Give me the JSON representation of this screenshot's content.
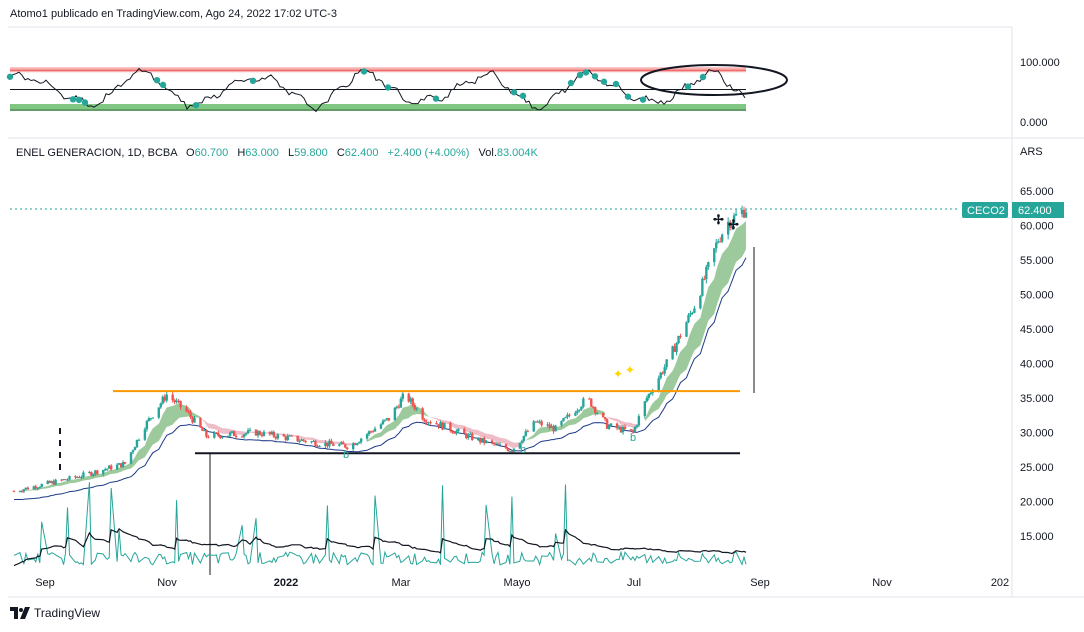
{
  "header": {
    "publisher_line": "Atomo1 publicado en TradingView.com, Ago 24, 2022 17:02 UTC-3"
  },
  "footer": {
    "brand": "TradingView",
    "logo": "tradingview-logo"
  },
  "colors": {
    "up": "#26a69a",
    "down": "#ef5350",
    "orange": "#ff9800",
    "ma": "#1e3a8a",
    "ribbon_up": "#7cb87c",
    "ribbon_down": "#e8a7b5",
    "volume": "#26a69a",
    "band_top": "#f08080",
    "band_bottom": "#2e7d32",
    "price_tag": "#26a69a"
  },
  "oscillator": {
    "ticks": [
      "100.000",
      "0.000"
    ],
    "ylim": [
      0,
      100
    ],
    "upper_band": 85,
    "lower_band": 20,
    "mid_line": 50
  },
  "legend": {
    "symbol": "ENEL GENERACION, 1D, BCBA",
    "o_label": "O",
    "o": "60.700",
    "h_label": "H",
    "h": "63.000",
    "l_label": "L",
    "l": "59.800",
    "c_label": "C",
    "c": "62.400",
    "change": "+2.400 (+4.00%)",
    "vol_label": "Vol.",
    "vol": "83.004K"
  },
  "price_axis": {
    "currency": "ARS",
    "ticks": [
      "65.000",
      "60.000",
      "55.000",
      "50.000",
      "45.000",
      "40.000",
      "35.000",
      "30.000",
      "25.000",
      "20.000",
      "15.000"
    ],
    "tick_values": [
      65,
      60,
      55,
      50,
      45,
      40,
      35,
      30,
      25,
      20,
      15
    ]
  },
  "time_axis": {
    "labels": [
      "Sep",
      "Nov",
      "2022",
      "Mar",
      "Mayo",
      "Jul",
      "Sep",
      "Nov",
      "202"
    ]
  },
  "price_tag": {
    "symbol": "CECO2",
    "value": "62.400"
  },
  "annotations": {
    "marker_b": "b"
  },
  "chart_data": {
    "type": "candlestick",
    "ylim": [
      12,
      67
    ],
    "x_range": [
      "Ago 2021",
      "Ene 2023"
    ],
    "support_level": 27,
    "resistance_level": 36,
    "approx_close_path": [
      {
        "x": "2021-08-20",
        "y": 21.5
      },
      {
        "x": "2021-09-20",
        "y": 23.5
      },
      {
        "x": "2021-10-15",
        "y": 25.5
      },
      {
        "x": "2021-10-25",
        "y": 31
      },
      {
        "x": "2021-11-05",
        "y": 35.5
      },
      {
        "x": "2021-11-15",
        "y": 33
      },
      {
        "x": "2021-11-25",
        "y": 29.5
      },
      {
        "x": "2021-12-20",
        "y": 30
      },
      {
        "x": "2022-01-20",
        "y": 28.5
      },
      {
        "x": "2022-02-05",
        "y": 28
      },
      {
        "x": "2022-02-25",
        "y": 32
      },
      {
        "x": "2022-03-05",
        "y": 35.5
      },
      {
        "x": "2022-03-15",
        "y": 32
      },
      {
        "x": "2022-04-10",
        "y": 29
      },
      {
        "x": "2022-04-28",
        "y": 27.5
      },
      {
        "x": "2022-05-10",
        "y": 31.5
      },
      {
        "x": "2022-05-20",
        "y": 30.5
      },
      {
        "x": "2022-06-05",
        "y": 35
      },
      {
        "x": "2022-06-15",
        "y": 31
      },
      {
        "x": "2022-06-28",
        "y": 30
      },
      {
        "x": "2022-07-05",
        "y": 35
      },
      {
        "x": "2022-07-15",
        "y": 40
      },
      {
        "x": "2022-07-30",
        "y": 49
      },
      {
        "x": "2022-08-10",
        "y": 58
      },
      {
        "x": "2022-08-15",
        "y": 60.5
      },
      {
        "x": "2022-08-24",
        "y": 62.4
      }
    ]
  }
}
